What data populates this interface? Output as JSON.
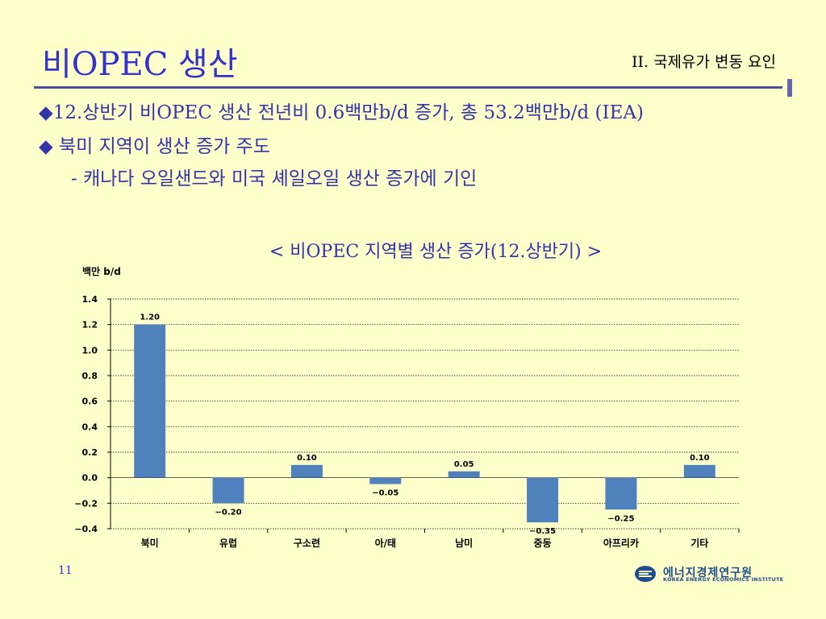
{
  "slide": {
    "title": "비OPEC 생산",
    "section": "II. 국제유가 변동 요인",
    "bullets": [
      "◆12.상반기 비OPEC 생산 전년비 0.6백만b/d 증가, 총 53.2백만b/d (IEA)",
      "◆ 북미 지역이 생산 증가 주도",
      "- 캐나다 오일샌드와 미국 셰일오일 생산 증가에 기인"
    ],
    "chart_heading": "< 비OPEC 지역별 생산 증가(12.상반기) >",
    "page_number": "11",
    "logo_kr": "에너지경제연구원",
    "logo_en": "KOREA ENERGY ECONOMICS INSTITUTE"
  },
  "chart_data": {
    "type": "bar",
    "ylabel": "백만 b/d",
    "ylim": [
      -0.4,
      1.4
    ],
    "yticks": [
      "-0.4",
      "-0.2",
      "0.0",
      "0.2",
      "0.4",
      "0.6",
      "0.8",
      "1.0",
      "1.2",
      "1.4"
    ],
    "grid": true,
    "categories": [
      "북미",
      "유럽",
      "구소련",
      "아/태",
      "남미",
      "중동",
      "아프리카",
      "기타"
    ],
    "values": [
      1.2,
      -0.2,
      0.1,
      -0.05,
      0.05,
      -0.35,
      -0.25,
      0.1
    ],
    "data_labels": [
      "1.20",
      "-0.20",
      "0.10",
      "-0.05",
      "0.05",
      "-0.35",
      "-0.25",
      "0.10"
    ],
    "bar_color": "#4f81bd"
  }
}
